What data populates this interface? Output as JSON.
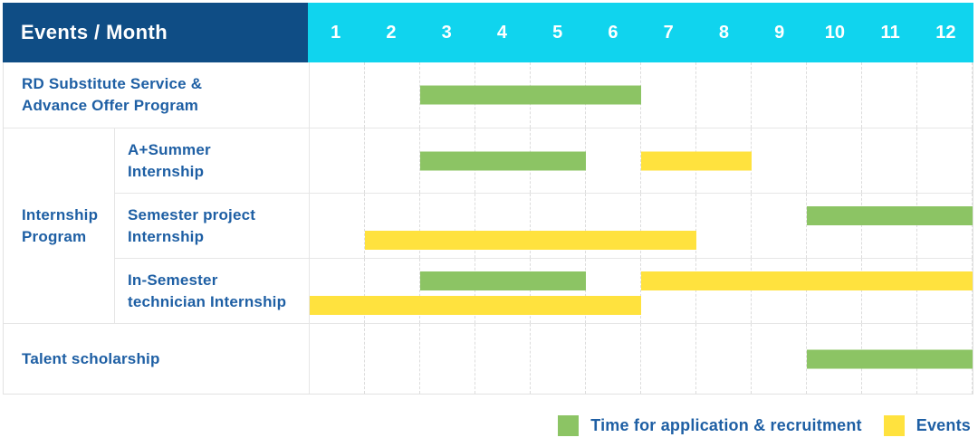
{
  "colors": {
    "header_bg": "#0F4D85",
    "months_bg": "#10D4EE",
    "application": "#8CC464",
    "event": "#FFE23E",
    "label_text": "#1E5FA4",
    "grid_line": "#E6E6E6"
  },
  "header": {
    "title": "Events / Month"
  },
  "group_cell": {
    "label": "Internship Program",
    "lines": [
      "Internship",
      "Program"
    ]
  },
  "chart_data": {
    "type": "bar",
    "subtype": "gantt-schedule",
    "title": "Events / Month",
    "x_categories": [
      "1",
      "2",
      "3",
      "4",
      "5",
      "6",
      "7",
      "8",
      "9",
      "10",
      "11",
      "12"
    ],
    "x_range": [
      1,
      12
    ],
    "grid": "dashed-vertical",
    "legend_position": "bottom-right",
    "rows": [
      {
        "group": "",
        "label": "RD Substitute Service & Advance Offer Program",
        "label_lines": [
          "RD Substitute Service &",
          "Advance Offer Program"
        ],
        "bars": [
          {
            "type": "application",
            "start_month": 3,
            "end_month": 6,
            "lane": "center"
          }
        ]
      },
      {
        "group": "Internship Program",
        "label": "A+Summer Internship",
        "label_lines": [
          "A+Summer",
          "Internship"
        ],
        "bars": [
          {
            "type": "application",
            "start_month": 3,
            "end_month": 5,
            "lane": "center"
          },
          {
            "type": "event",
            "start_month": 7,
            "end_month": 8,
            "lane": "center"
          }
        ]
      },
      {
        "group": "Internship Program",
        "label": "Semester project Internship",
        "label_lines": [
          "Semester project",
          "Internship"
        ],
        "bars": [
          {
            "type": "application",
            "start_month": 10,
            "end_month": 12,
            "lane": "top"
          },
          {
            "type": "event",
            "start_month": 2,
            "end_month": 7,
            "lane": "bottom"
          }
        ]
      },
      {
        "group": "Internship Program",
        "label": "In-Semester technician Internship",
        "label_lines": [
          "In-Semester",
          "technician Internship"
        ],
        "bars": [
          {
            "type": "application",
            "start_month": 3,
            "end_month": 5,
            "lane": "top"
          },
          {
            "type": "event",
            "start_month": 7,
            "end_month": 12,
            "lane": "top"
          },
          {
            "type": "event",
            "start_month": 1,
            "end_month": 6,
            "lane": "bottom"
          }
        ]
      },
      {
        "group": "",
        "label": "Talent scholarship",
        "label_lines": [
          "Talent scholarship"
        ],
        "bars": [
          {
            "type": "application",
            "start_month": 10,
            "end_month": 12,
            "lane": "center"
          }
        ]
      }
    ],
    "legend": [
      {
        "label": "Time for application & recruitment",
        "color": "#8CC464",
        "type": "application"
      },
      {
        "label": "Events",
        "color": "#FFE23E",
        "type": "event"
      }
    ]
  }
}
